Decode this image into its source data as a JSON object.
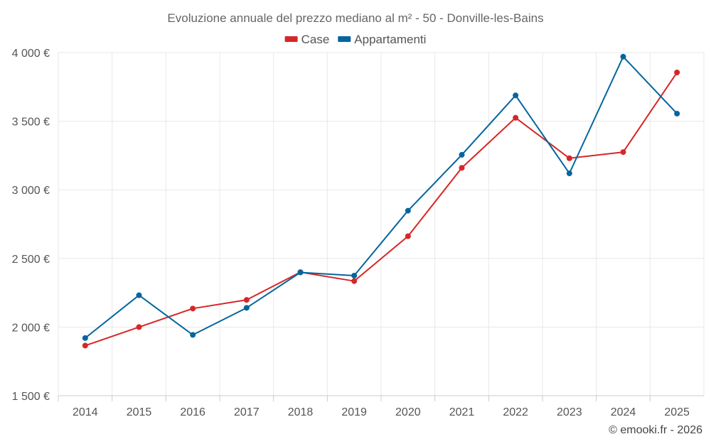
{
  "chart_data": {
    "type": "line",
    "title": "Evoluzione annuale del prezzo mediano al m² - 50 - Donville-les-Bains",
    "categories": [
      "2014",
      "2015",
      "2016",
      "2017",
      "2018",
      "2019",
      "2020",
      "2021",
      "2022",
      "2023",
      "2024",
      "2025"
    ],
    "series": [
      {
        "name": "Case",
        "color": "#d62728",
        "values": [
          1865,
          2000,
          2135,
          2198,
          2400,
          2335,
          2662,
          3160,
          3525,
          3230,
          3275,
          3855
        ]
      },
      {
        "name": "Appartamenti",
        "color": "#05659e",
        "values": [
          1920,
          2232,
          1943,
          2140,
          2398,
          2375,
          2848,
          3255,
          3688,
          3120,
          3970,
          3555
        ]
      }
    ],
    "ylim": [
      1500,
      4000
    ],
    "yticks": [
      1500,
      2000,
      2500,
      3000,
      3500,
      4000
    ],
    "ytick_labels": [
      "1 500 €",
      "2 000 €",
      "2 500 €",
      "3 000 €",
      "3 500 €",
      "4 000 €"
    ],
    "xlabel": "",
    "ylabel": "",
    "grid": true,
    "legend_position": "top-center"
  },
  "credit": "© emooki.fr - 2026"
}
